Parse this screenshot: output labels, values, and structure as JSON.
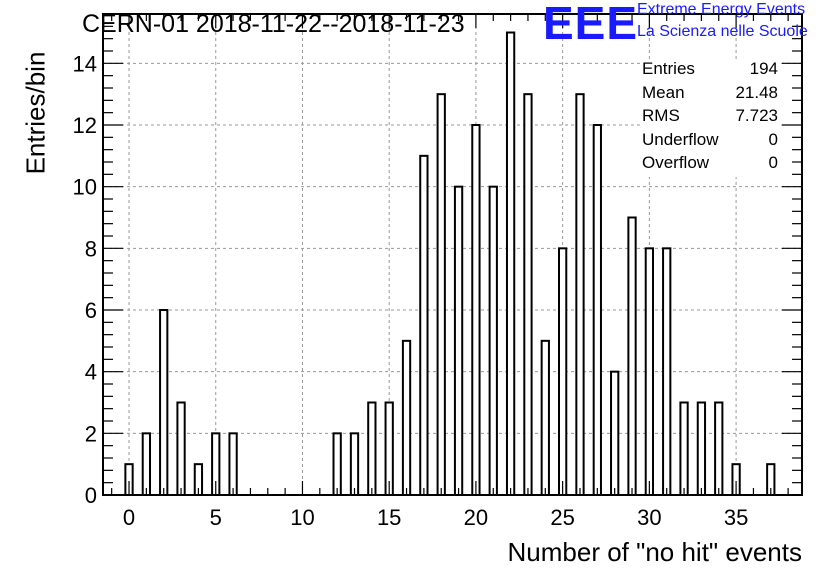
{
  "chart_data": {
    "type": "bar",
    "title": "CERN-01 2018-11-22--2018-11-23",
    "xlabel": "Number of \"no hit\" events",
    "ylabel": "Entries/bin",
    "xlim": [
      -1.5,
      38.8
    ],
    "ylim": [
      0,
      15.6
    ],
    "xticks": [
      0,
      5,
      10,
      15,
      20,
      25,
      30,
      35
    ],
    "yticks": [
      0,
      2,
      4,
      6,
      8,
      10,
      12,
      14
    ],
    "grid": true,
    "bins": [
      {
        "x": 0,
        "value": 1
      },
      {
        "x": 1,
        "value": 2
      },
      {
        "x": 2,
        "value": 6
      },
      {
        "x": 3,
        "value": 3
      },
      {
        "x": 4,
        "value": 1
      },
      {
        "x": 5,
        "value": 2
      },
      {
        "x": 6,
        "value": 2
      },
      {
        "x": 12,
        "value": 2
      },
      {
        "x": 13,
        "value": 2
      },
      {
        "x": 14,
        "value": 3
      },
      {
        "x": 15,
        "value": 3
      },
      {
        "x": 16,
        "value": 5
      },
      {
        "x": 17,
        "value": 11
      },
      {
        "x": 18,
        "value": 13
      },
      {
        "x": 19,
        "value": 10
      },
      {
        "x": 20,
        "value": 12
      },
      {
        "x": 21,
        "value": 10
      },
      {
        "x": 22,
        "value": 15
      },
      {
        "x": 23,
        "value": 13
      },
      {
        "x": 24,
        "value": 5
      },
      {
        "x": 25,
        "value": 8
      },
      {
        "x": 26,
        "value": 13
      },
      {
        "x": 27,
        "value": 12
      },
      {
        "x": 28,
        "value": 4
      },
      {
        "x": 29,
        "value": 9
      },
      {
        "x": 30,
        "value": 8
      },
      {
        "x": 31,
        "value": 8
      },
      {
        "x": 32,
        "value": 3
      },
      {
        "x": 33,
        "value": 3
      },
      {
        "x": 34,
        "value": 3
      },
      {
        "x": 35,
        "value": 1
      },
      {
        "x": 37,
        "value": 1
      }
    ]
  },
  "stats_box": [
    {
      "label": "Entries",
      "value": "194"
    },
    {
      "label": "Mean",
      "value": "21.48"
    },
    {
      "label": "RMS",
      "value": "7.723"
    },
    {
      "label": "Underflow",
      "value": "0"
    },
    {
      "label": "Overflow",
      "value": "0"
    }
  ],
  "logo": {
    "text": "EEE",
    "line1": "Extreme Energy Events",
    "line2": "La Scienza nelle Scuole",
    "color": "#1a1aff"
  }
}
